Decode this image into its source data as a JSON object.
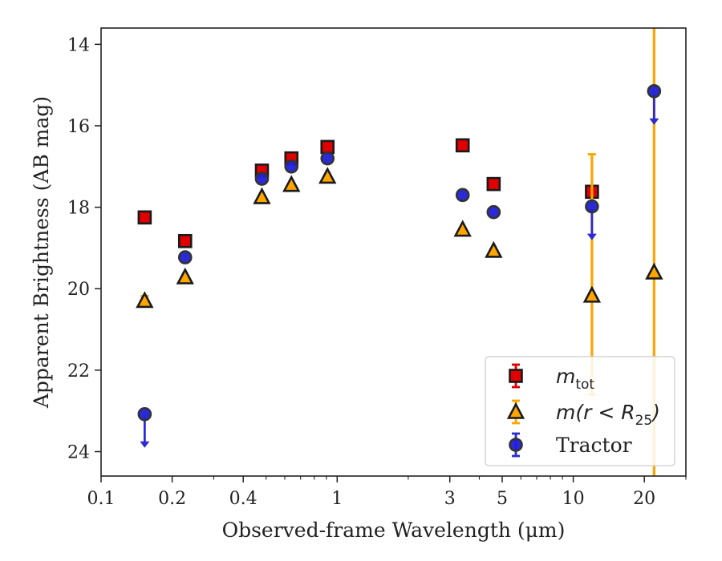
{
  "chart_data": {
    "type": "scatter",
    "xlabel": "Observed-frame Wavelength (μm)",
    "ylabel": "Apparent Brightness (AB mag)",
    "xscale": "log",
    "xlim": [
      0.1,
      30
    ],
    "ylim": [
      24.6,
      13.6
    ],
    "y_inverted": true,
    "x_ticks": [
      0.1,
      0.2,
      0.4,
      1,
      3,
      5,
      10,
      20
    ],
    "x_tick_labels": [
      "0.1",
      "0.2",
      "0.4",
      "1",
      "3",
      "5",
      "10",
      "20"
    ],
    "y_ticks": [
      14,
      16,
      18,
      20,
      22,
      24
    ],
    "y_tick_labels": [
      "14",
      "16",
      "18",
      "20",
      "22",
      "24"
    ],
    "grid": false,
    "legend_position": "bottom-right",
    "series": [
      {
        "key": "mtot",
        "legend_base": "m",
        "legend_sub": "tot",
        "marker": "square",
        "face_color": "#e00000",
        "edge_color": "#1a1a1a",
        "err_color": "#e00000",
        "points": [
          {
            "x": 0.153,
            "y": 18.25
          },
          {
            "x": 0.227,
            "y": 18.83
          },
          {
            "x": 0.48,
            "y": 17.1
          },
          {
            "x": 0.64,
            "y": 16.8
          },
          {
            "x": 0.91,
            "y": 16.52
          },
          {
            "x": 3.4,
            "y": 16.48
          },
          {
            "x": 4.6,
            "y": 17.43
          },
          {
            "x": 12.0,
            "y": 17.62
          }
        ]
      },
      {
        "key": "mr25",
        "legend_base": "m(r < R",
        "legend_sub": "25",
        "legend_tail": ")",
        "marker": "triangle",
        "face_color": "#ffa500",
        "edge_color": "#1a1a1a",
        "err_color": "#ffa500",
        "points": [
          {
            "x": 0.153,
            "y": 20.3,
            "err": 0.12
          },
          {
            "x": 0.227,
            "y": 19.72
          },
          {
            "x": 0.48,
            "y": 17.75
          },
          {
            "x": 0.64,
            "y": 17.45
          },
          {
            "x": 0.91,
            "y": 17.25
          },
          {
            "x": 3.4,
            "y": 18.55
          },
          {
            "x": 4.6,
            "y": 19.07
          },
          {
            "x": 12.0,
            "y": 20.17,
            "err_low": 16.7,
            "err_high": 22.6
          },
          {
            "x": 22.0,
            "y": 19.6,
            "err_low": 13.6,
            "err_high": 24.6
          }
        ]
      },
      {
        "key": "tractor",
        "legend_base": "Tractor",
        "marker": "circle",
        "face_color": "#1f1fd6",
        "edge_color": "#333333",
        "err_color": "#2b2bd0",
        "points": [
          {
            "x": 0.153,
            "y": 23.08,
            "upper_limit": true
          },
          {
            "x": 0.227,
            "y": 19.23
          },
          {
            "x": 0.48,
            "y": 17.3
          },
          {
            "x": 0.64,
            "y": 17.0
          },
          {
            "x": 0.91,
            "y": 16.8
          },
          {
            "x": 3.4,
            "y": 17.7
          },
          {
            "x": 4.6,
            "y": 18.12
          },
          {
            "x": 12.0,
            "y": 17.98,
            "upper_limit": true
          },
          {
            "x": 22.0,
            "y": 15.15,
            "upper_limit": true
          }
        ]
      }
    ]
  }
}
